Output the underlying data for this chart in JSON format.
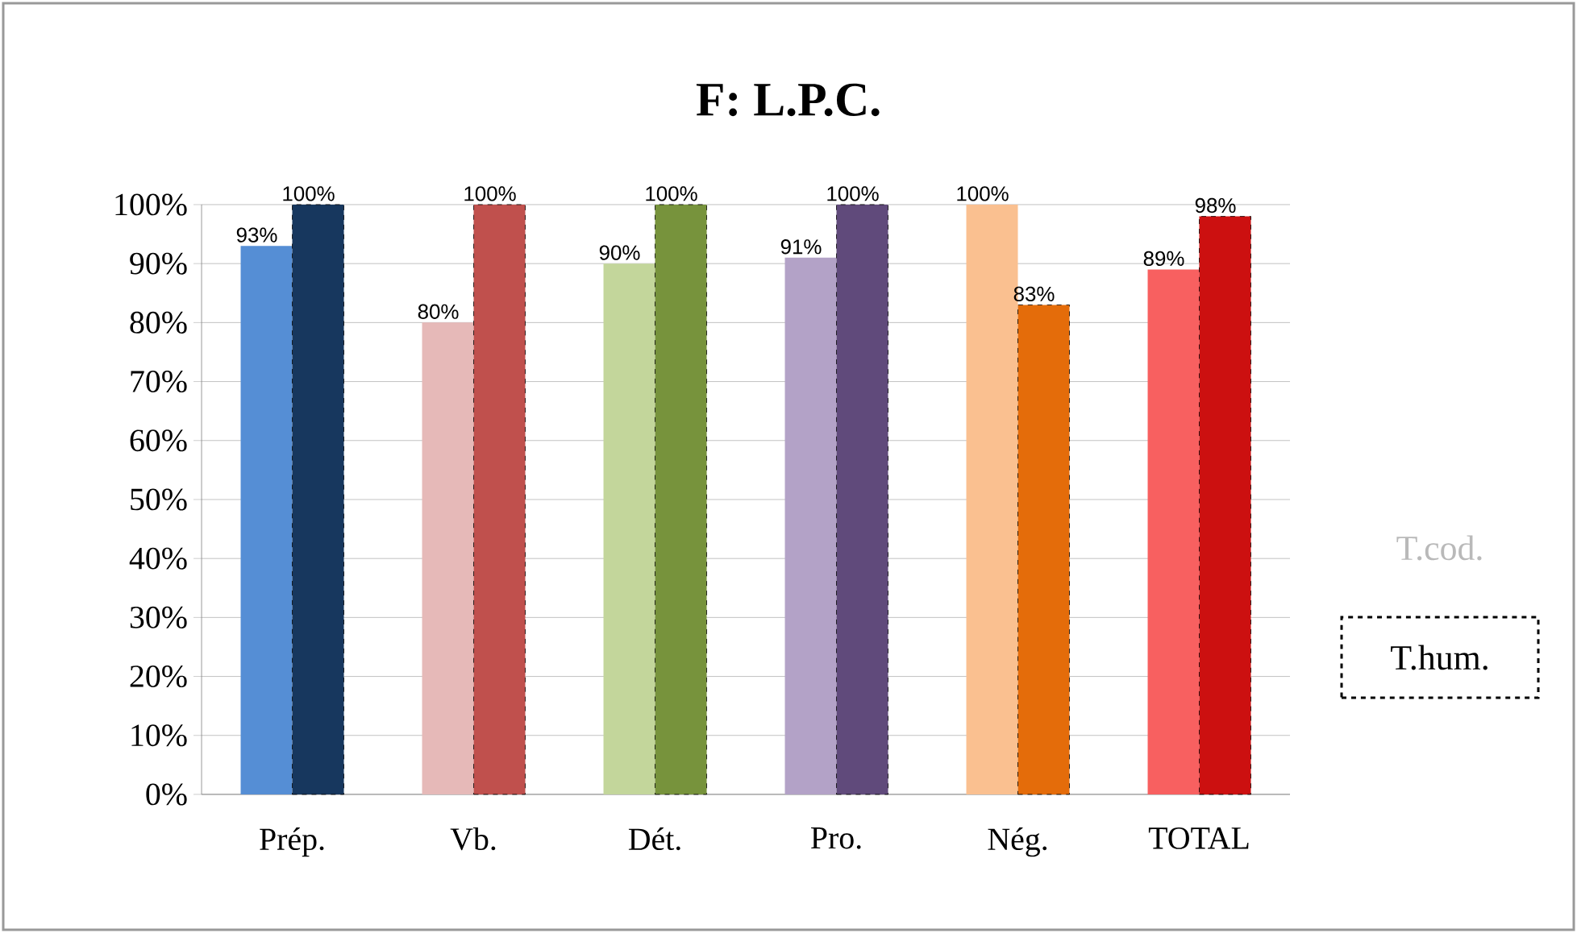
{
  "chart_data": {
    "type": "bar",
    "title": "F: L.P.C.",
    "categories": [
      "Prép.",
      "Vb.",
      "Dét.",
      "Pro.",
      "Nég.",
      "TOTAL"
    ],
    "series": [
      {
        "name": "T.cod.",
        "colors": [
          "#558ed5",
          "#e6b9b8",
          "#c3d69b",
          "#b3a2c7",
          "#fac090",
          "#f86060"
        ],
        "values": [
          93,
          80,
          90,
          91,
          100,
          89
        ],
        "value_labels": [
          "93%",
          "80%",
          "90%",
          "91%",
          "100%",
          "89%"
        ]
      },
      {
        "name": "T.hum.",
        "colors": [
          "#17375e",
          "#c0504d",
          "#77933c",
          "#604a7b",
          "#e46c0a",
          "#cc1010"
        ],
        "values": [
          100,
          100,
          100,
          100,
          83,
          98
        ],
        "value_labels": [
          "100%",
          "100%",
          "100%",
          "100%",
          "83%",
          "98%"
        ],
        "line_style": "dashed"
      }
    ],
    "ylim": [
      0,
      100
    ],
    "yticks": [
      {
        "value": 0,
        "label": "0%"
      },
      {
        "value": 10,
        "label": "10%"
      },
      {
        "value": 20,
        "label": "20%"
      },
      {
        "value": 30,
        "label": "30%"
      },
      {
        "value": 40,
        "label": "40%"
      },
      {
        "value": 50,
        "label": "50%"
      },
      {
        "value": 60,
        "label": "60%"
      },
      {
        "value": 70,
        "label": "70%"
      },
      {
        "value": 80,
        "label": "80%"
      },
      {
        "value": 90,
        "label": "90%"
      },
      {
        "value": 100,
        "label": "100%"
      }
    ],
    "grid": "y",
    "legend": "right"
  }
}
